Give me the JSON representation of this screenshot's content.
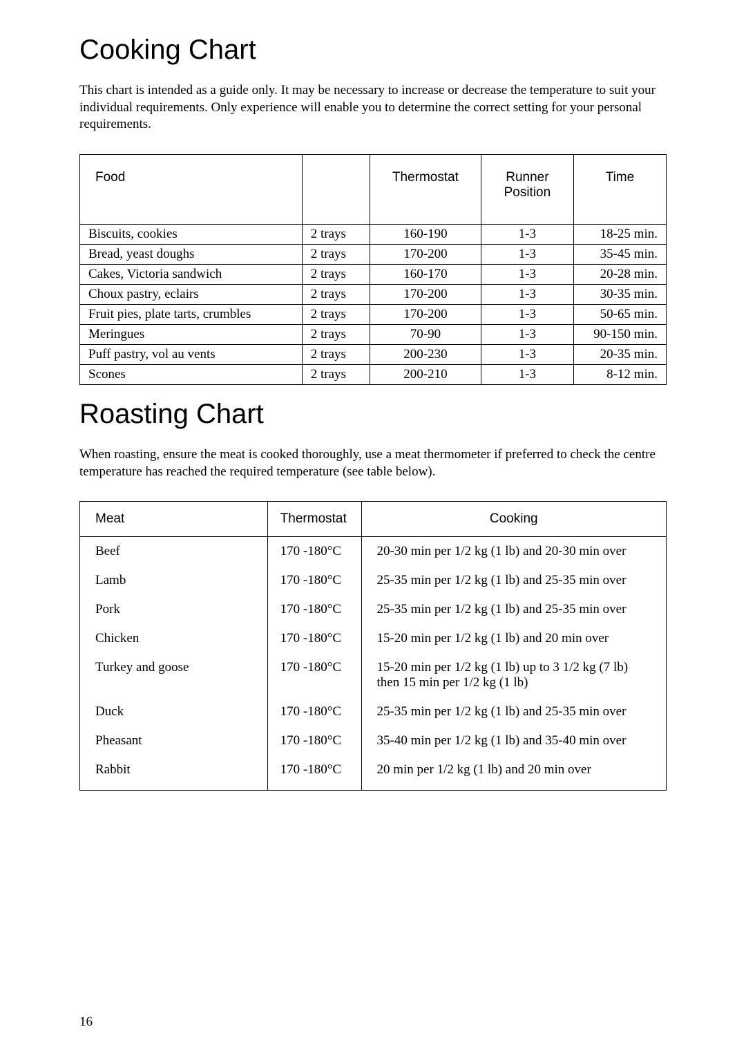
{
  "cooking": {
    "title": "Cooking Chart",
    "intro": "This chart is intended as a guide only. It may be necessary to increase or decrease the temperature to suit your individual requirements. Only experience will enable you to determine the correct setting for your personal requirements.",
    "headers": {
      "food": "Food",
      "blank": "",
      "thermostat": "Thermostat",
      "runner": "Runner Position",
      "time": "Time"
    },
    "rows": [
      {
        "food": "Biscuits, cookies",
        "trays": "2 trays",
        "thermo": "160-190",
        "runner": "1-3",
        "time": "18-25 min."
      },
      {
        "food": "Bread, yeast doughs",
        "trays": "2 trays",
        "thermo": "170-200",
        "runner": "1-3",
        "time": "35-45 min."
      },
      {
        "food": "Cakes, Victoria sandwich",
        "trays": "2 trays",
        "thermo": "160-170",
        "runner": "1-3",
        "time": "20-28 min."
      },
      {
        "food": "Choux pastry, eclairs",
        "trays": "2 trays",
        "thermo": "170-200",
        "runner": "1-3",
        "time": "30-35 min."
      },
      {
        "food": "Fruit pies, plate tarts, crumbles",
        "trays": "2 trays",
        "thermo": "170-200",
        "runner": "1-3",
        "time": "50-65 min."
      },
      {
        "food": "Meringues",
        "trays": "2 trays",
        "thermo": "70-90",
        "runner": "1-3",
        "time": "90-150 min."
      },
      {
        "food": "Puff pastry, vol au vents",
        "trays": "2 trays",
        "thermo": "200-230",
        "runner": "1-3",
        "time": "20-35 min."
      },
      {
        "food": "Scones",
        "trays": "2 trays",
        "thermo": "200-210",
        "runner": "1-3",
        "time": "8-12 min."
      }
    ]
  },
  "roasting": {
    "title": "Roasting Chart",
    "intro": "When roasting, ensure the meat is cooked thoroughly, use a meat thermometer if preferred to check the centre temperature has reached the required temperature (see table below).",
    "headers": {
      "meat": "Meat",
      "thermostat": "Thermostat",
      "cooking": "Cooking"
    },
    "rows": [
      {
        "meat": "Beef",
        "thermo": "170 -180°C",
        "cook": "20-30 min per 1/2 kg (1 lb) and 20-30 min over"
      },
      {
        "meat": "Lamb",
        "thermo": "170 -180°C",
        "cook": "25-35 min per 1/2 kg (1 lb) and 25-35 min over"
      },
      {
        "meat": "Pork",
        "thermo": "170 -180°C",
        "cook": "25-35 min per 1/2 kg (1 lb) and 25-35 min over"
      },
      {
        "meat": "Chicken",
        "thermo": "170 -180°C",
        "cook": "15-20 min per 1/2 kg (1 lb) and 20 min over"
      },
      {
        "meat": "Turkey and goose",
        "thermo": "170 -180°C",
        "cook": "15-20 min per 1/2 kg (1 lb) up to 3 1/2 kg (7 lb) then 15 min per 1/2 kg (1 lb)"
      },
      {
        "meat": "Duck",
        "thermo": "170 -180°C",
        "cook": "25-35 min per 1/2 kg (1 lb) and 25-35 min over"
      },
      {
        "meat": "Pheasant",
        "thermo": "170 -180°C",
        "cook": "35-40 min per 1/2 kg (1 lb) and 35-40 min over"
      },
      {
        "meat": "Rabbit",
        "thermo": "170 -180°C",
        "cook": "20 min per 1/2 kg (1 lb) and 20 min over"
      }
    ]
  },
  "page_number": "16"
}
